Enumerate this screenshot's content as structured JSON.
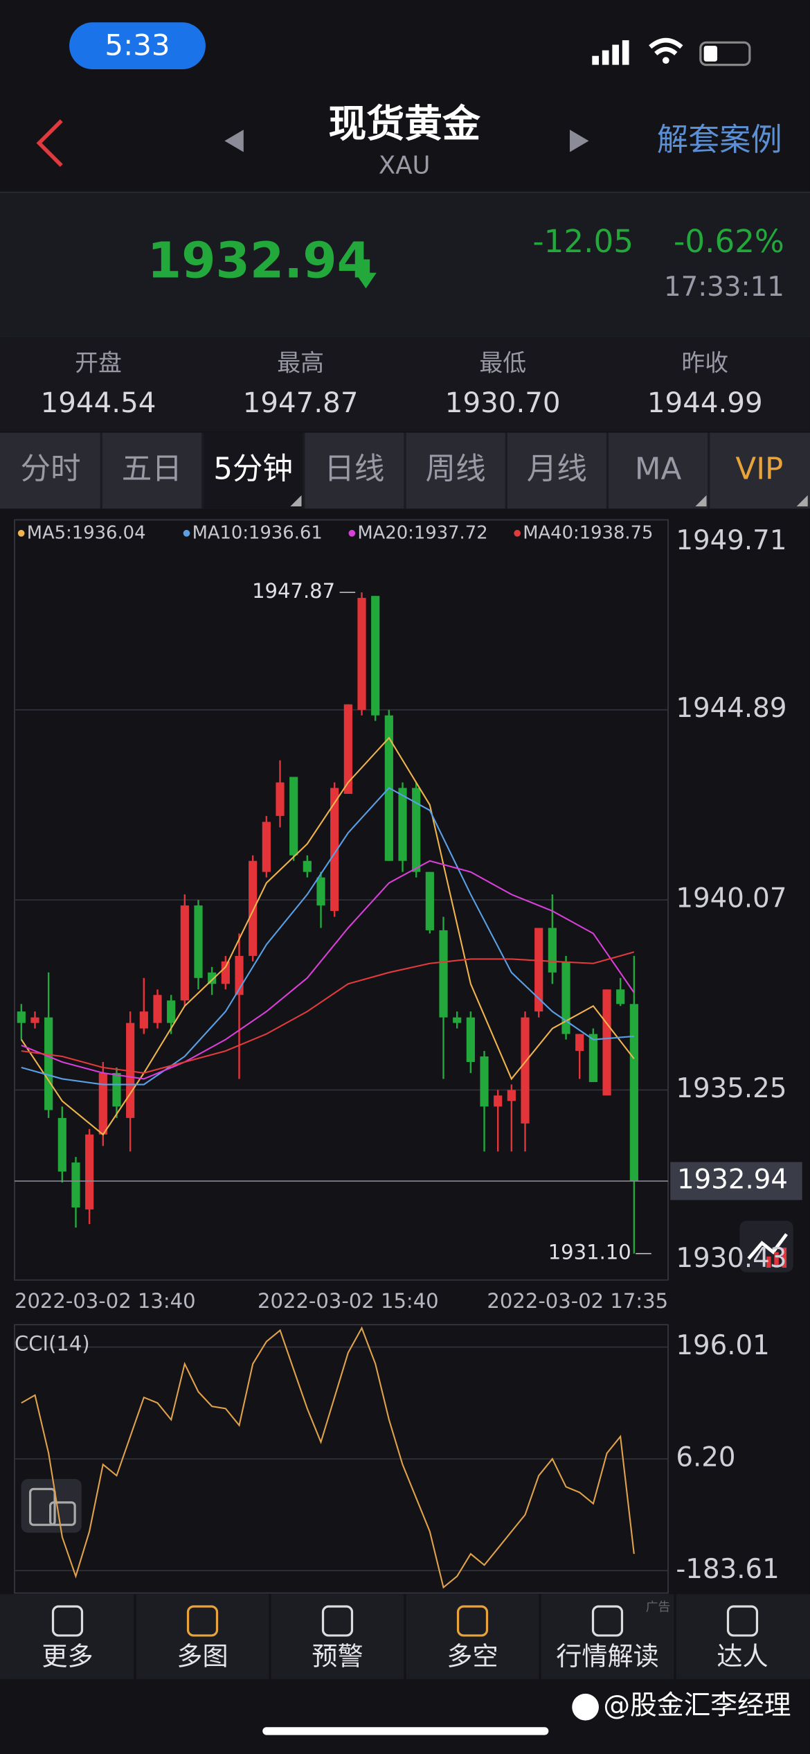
{
  "status_bar": {
    "time": "5:33"
  },
  "header": {
    "title": "现货黄金",
    "subtitle": "XAU",
    "action": "解套案例"
  },
  "quote": {
    "price": "1932.94",
    "change": "-12.05",
    "change_pct": "-0.62%",
    "time": "17:33:11"
  },
  "stats": [
    {
      "label": "开盘",
      "value": "1944.54"
    },
    {
      "label": "最高",
      "value": "1947.87"
    },
    {
      "label": "最低",
      "value": "1930.70"
    },
    {
      "label": "昨收",
      "value": "1944.99"
    }
  ],
  "tabs": [
    "分时",
    "五日",
    "5分钟",
    "日线",
    "周线",
    "月线",
    "MA",
    "VIP"
  ],
  "chart_data": [
    {
      "type": "candlestick",
      "up_color": "#e3343a",
      "down_color": "#22a83b",
      "grid": true,
      "xlim": [
        -0.5,
        47.5
      ],
      "xticks": [
        {
          "value": 0,
          "label": "2022-03-02 13:40"
        },
        {
          "value": 24,
          "label": "2022-03-02 15:40"
        },
        {
          "value": 47,
          "label": "2022-03-02 17:35"
        }
      ],
      "ylim": [
        1930.43,
        1949.71
      ],
      "yticks": [
        1930.43,
        1935.25,
        1940.07,
        1944.89,
        1949.71
      ],
      "open": [
        1937.24,
        1936.95,
        1937.09,
        1934.54,
        1933.41,
        1932.22,
        1934.12,
        1935.68,
        1934.54,
        1936.81,
        1936.95,
        1937.52,
        1937.52,
        1939.93,
        1938.23,
        1937.94,
        1937.66,
        1938.65,
        1940.78,
        1942.2,
        1943.19,
        1941.06,
        1940.64,
        1939.79,
        1942.76,
        1944.89,
        1947.78,
        1944.75,
        1942.91,
        1942.91,
        1940.78,
        1939.3,
        1937.09,
        1937.09,
        1936.1,
        1934.83,
        1934.97,
        1934.4,
        1937.24,
        1939.36,
        1938.51,
        1936.24,
        1936.67,
        1935.11,
        1937.8,
        1937.43
      ],
      "high": [
        1937.43,
        1937.24,
        1938.23,
        1934.83,
        1933.55,
        1934.26,
        1935.96,
        1935.82,
        1937.24,
        1938.09,
        1937.8,
        1937.66,
        1940.21,
        1940.07,
        1938.37,
        1938.65,
        1939.22,
        1941.2,
        1942.2,
        1943.61,
        1943.19,
        1941.2,
        1940.78,
        1943.05,
        1945.03,
        1947.87,
        1947.78,
        1944.89,
        1943.05,
        1943.05,
        1940.78,
        1939.64,
        1937.24,
        1937.24,
        1936.24,
        1935.25,
        1935.39,
        1937.24,
        1939.36,
        1940.21,
        1938.65,
        1936.67,
        1936.81,
        1937.8,
        1938.09,
        1938.65
      ],
      "low": [
        1936.53,
        1936.81,
        1934.54,
        1932.9,
        1931.76,
        1931.85,
        1933.83,
        1934.54,
        1933.69,
        1936.67,
        1936.81,
        1936.67,
        1937.38,
        1937.8,
        1937.66,
        1937.8,
        1935.53,
        1938.51,
        1940.64,
        1941.91,
        1941.06,
        1940.64,
        1939.36,
        1939.64,
        1942.76,
        1944.75,
        1944.61,
        1941.06,
        1940.78,
        1940.64,
        1939.22,
        1935.53,
        1936.81,
        1935.68,
        1933.69,
        1933.69,
        1933.69,
        1933.69,
        1937.09,
        1937.94,
        1936.53,
        1935.53,
        1935.45,
        1935.11,
        1937.38,
        1931.1
      ],
      "close": [
        1936.95,
        1937.09,
        1934.74,
        1933.18,
        1932.27,
        1934.12,
        1935.68,
        1934.83,
        1936.95,
        1937.24,
        1937.66,
        1936.95,
        1939.93,
        1938.09,
        1937.94,
        1938.51,
        1938.65,
        1941.06,
        1942.05,
        1943.05,
        1941.2,
        1940.78,
        1939.93,
        1942.91,
        1945.03,
        1947.73,
        1944.75,
        1941.06,
        1941.06,
        1940.78,
        1939.3,
        1937.09,
        1936.95,
        1935.96,
        1934.83,
        1935.11,
        1935.25,
        1937.09,
        1939.36,
        1938.23,
        1936.67,
        1936.67,
        1935.45,
        1937.8,
        1937.43,
        1932.94
      ],
      "series": [
        {
          "name": "MA5:1936.04",
          "color": "#f0b44c",
          "x": [
            0,
            3,
            6,
            9,
            12,
            15,
            18,
            21,
            24,
            27,
            30,
            33,
            36,
            39,
            42,
            45
          ],
          "values": [
            1936.53,
            1934.97,
            1934.12,
            1935.68,
            1937.38,
            1938.37,
            1940.5,
            1941.49,
            1943.05,
            1944.18,
            1942.48,
            1937.94,
            1935.53,
            1936.81,
            1937.38,
            1936.04
          ]
        },
        {
          "name": "MA10:1936.61",
          "color": "#5aa0e6",
          "x": [
            0,
            3,
            6,
            9,
            12,
            15,
            18,
            21,
            24,
            27,
            30,
            33,
            36,
            39,
            42,
            45
          ],
          "values": [
            1935.82,
            1935.53,
            1935.39,
            1935.39,
            1936.1,
            1937.24,
            1938.94,
            1940.21,
            1941.77,
            1942.91,
            1942.34,
            1940.21,
            1938.23,
            1937.24,
            1936.53,
            1936.61
          ]
        },
        {
          "name": "MA20:1937.72",
          "color": "#d93fd9",
          "x": [
            0,
            3,
            6,
            9,
            12,
            15,
            18,
            21,
            24,
            27,
            30,
            33,
            36,
            39,
            42,
            45
          ],
          "values": [
            1936.38,
            1935.96,
            1935.68,
            1935.53,
            1935.96,
            1936.53,
            1937.24,
            1938.09,
            1939.36,
            1940.5,
            1941.06,
            1940.78,
            1940.21,
            1939.79,
            1939.22,
            1937.72
          ]
        },
        {
          "name": "MA40:1938.75",
          "color": "#e23b3b",
          "x": [
            0,
            3,
            6,
            9,
            12,
            15,
            18,
            21,
            24,
            27,
            30,
            33,
            36,
            39,
            42,
            45
          ],
          "values": [
            1936.24,
            1936.1,
            1935.82,
            1935.68,
            1935.96,
            1936.24,
            1936.67,
            1937.24,
            1937.94,
            1938.23,
            1938.46,
            1938.57,
            1938.57,
            1938.51,
            1938.46,
            1938.75
          ]
        }
      ],
      "annotations": [
        {
          "value": 1947.87,
          "label": "1947.87"
        },
        {
          "value": 1931.1,
          "label": "1931.10"
        },
        {
          "value": 1932.94,
          "label": "1932.94"
        }
      ]
    },
    {
      "type": "line",
      "title": "CCI(14)",
      "color": "#e0a24a",
      "grid": true,
      "xlim": [
        -0.5,
        47.5
      ],
      "ylim": [
        -221.57,
        233.97
      ],
      "yticks": [
        196.01,
        {
          "value": 6.2,
          "label": "6.20"
        },
        -183.61
      ],
      "values": [
        101.1,
        114.4,
        15.7,
        -126.7,
        -193.1,
        -117.2,
        -3.3,
        -22.3,
        44.2,
        110.6,
        101.1,
        72.6,
        167.5,
        120.1,
        95.4,
        91.6,
        63.1,
        167.5,
        205.5,
        224.5,
        158.0,
        91.6,
        34.7,
        110.6,
        186.5,
        228.3,
        167.5,
        72.6,
        -3.3,
        -60.2,
        -117.2,
        -212.1,
        -193.1,
        -155.1,
        -174.1,
        -145.6,
        -117.2,
        -88.7,
        -22.3,
        6.2,
        -41.3,
        -50.7,
        -69.7,
        15.7,
        44.2,
        -155.1
      ]
    }
  ],
  "nav": [
    "更多",
    "多图",
    "预警",
    "多空",
    "行情解读",
    "达人"
  ],
  "ad_label": "广告",
  "watermark": "@股金汇李经理"
}
